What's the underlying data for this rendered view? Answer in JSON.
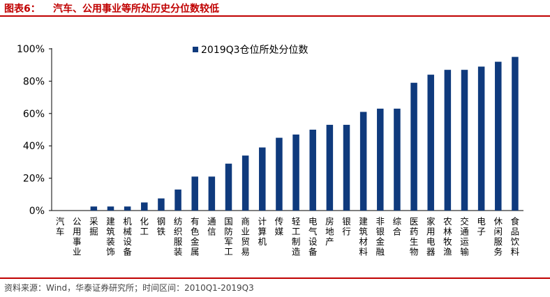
{
  "header": {
    "figure_label": "图表6：",
    "title": "汽车、公用事业等所处历史分位数较低"
  },
  "footer": {
    "source": "资料来源：Wind，华泰证券研究所；时间区间：2010Q1-2019Q3"
  },
  "colors": {
    "accent": "#c00000",
    "bar": "#0f3a7d"
  },
  "chart_data": {
    "type": "bar",
    "title": "汽车、公用事业等所处历史分位数较低",
    "xlabel": "",
    "ylabel": "",
    "ylim": [
      0,
      100
    ],
    "yticks": [
      "0%",
      "20%",
      "40%",
      "60%",
      "80%",
      "100%"
    ],
    "ytick_values": [
      0,
      20,
      40,
      60,
      80,
      100
    ],
    "legend": {
      "position": "top-left",
      "entries": [
        "2019Q3仓位所处分位数"
      ]
    },
    "grid": false,
    "categories": [
      "汽车",
      "公用事业",
      "采掘",
      "建筑装饰",
      "机械设备",
      "化工",
      "钢铁",
      "纺织服装",
      "有色金属",
      "通信",
      "国防军工",
      "商业贸易",
      "计算机",
      "传媒",
      "轻工制造",
      "电气设备",
      "房地产",
      "银行",
      "建筑材料",
      "非银金融",
      "综合",
      "医药生物",
      "家用电器",
      "农林牧渔",
      "交通运输",
      "电子",
      "休闲服务",
      "食品饮料"
    ],
    "series": [
      {
        "name": "2019Q3仓位所处分位数",
        "values": [
          0,
          0,
          2.5,
          2.5,
          2.5,
          5,
          7.5,
          13,
          21,
          21,
          29,
          34,
          39,
          45,
          47,
          50,
          53,
          53,
          61,
          63,
          63,
          79,
          84,
          87,
          87,
          89,
          92,
          95
        ]
      }
    ]
  }
}
